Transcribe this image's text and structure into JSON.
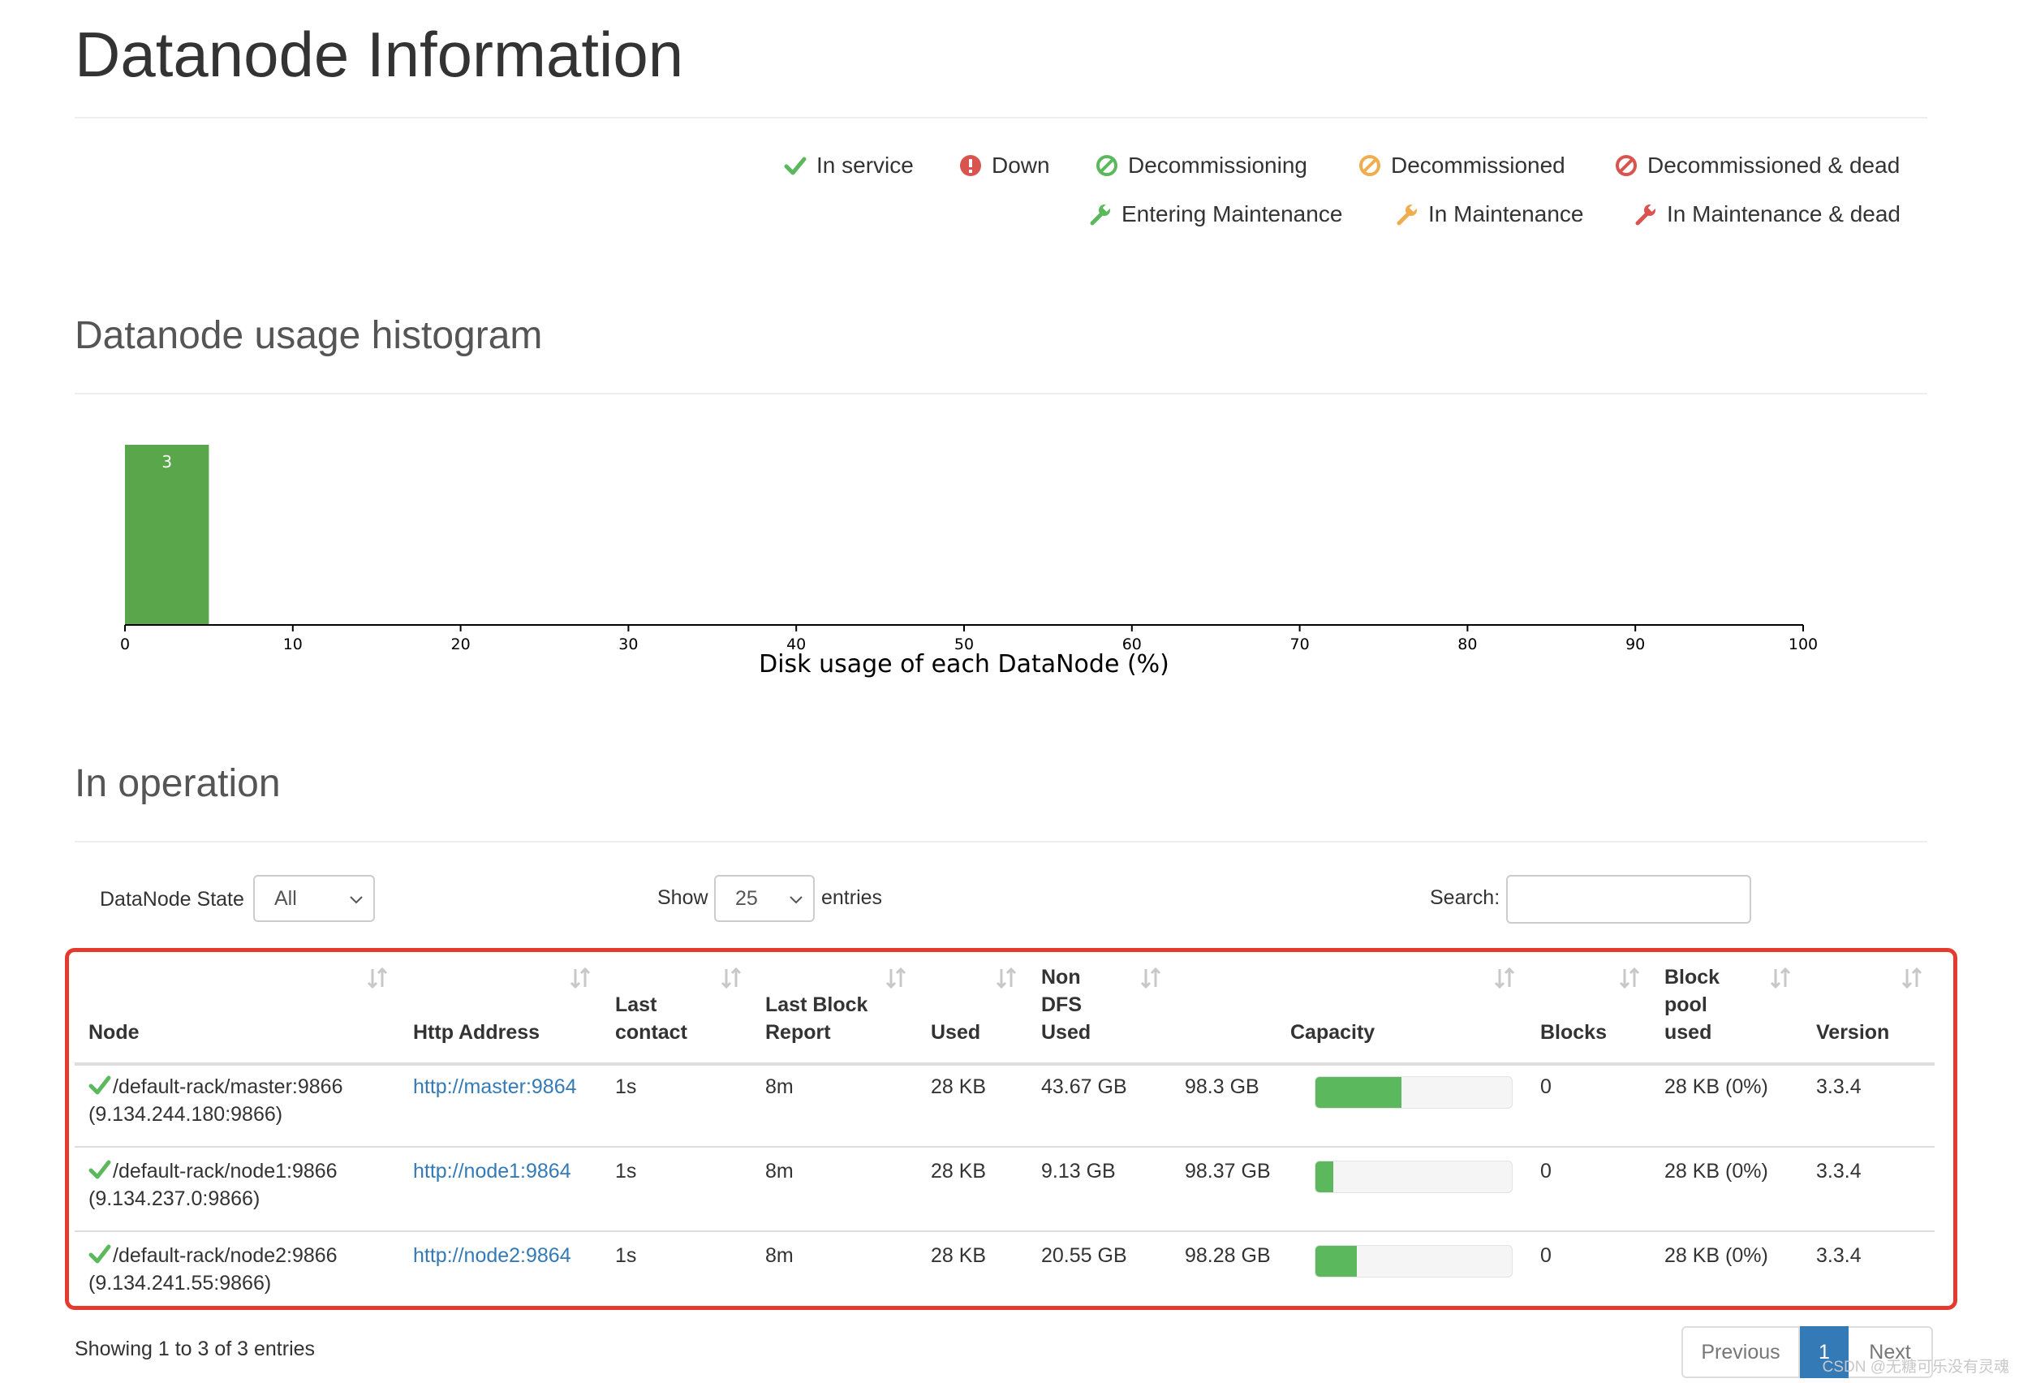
{
  "page": {
    "title": "Datanode Information"
  },
  "legend": [
    {
      "label": "In service",
      "icon": "check-icon",
      "color": "#5cb85c"
    },
    {
      "label": "Down",
      "icon": "exclamation-circle-icon",
      "color": "#d9534f"
    },
    {
      "label": "Decommissioning",
      "icon": "ban-icon",
      "color": "#5cb85c"
    },
    {
      "label": "Decommissioned",
      "icon": "ban-icon",
      "color": "#f0ad4e"
    },
    {
      "label": "Decommissioned & dead",
      "icon": "ban-icon",
      "color": "#d9534f"
    },
    {
      "label": "Entering Maintenance",
      "icon": "wrench-icon",
      "color": "#5cb85c"
    },
    {
      "label": "In Maintenance",
      "icon": "wrench-icon",
      "color": "#f0ad4e"
    },
    {
      "label": "In Maintenance & dead",
      "icon": "wrench-icon",
      "color": "#d9534f"
    }
  ],
  "histogram": {
    "title": "Datanode usage histogram",
    "chart_data": {
      "type": "bar",
      "title": "",
      "xlabel": "Disk usage of each DataNode (%)",
      "ylabel": "",
      "xlim": [
        0,
        100
      ],
      "bin_width": 5,
      "bins": [
        {
          "start": 0,
          "end": 5,
          "count": 3
        }
      ],
      "x_ticks": [
        0,
        10,
        20,
        30,
        40,
        50,
        60,
        70,
        80,
        90,
        100
      ],
      "bar_color": "#5aa64a"
    }
  },
  "operation": {
    "title": "In operation",
    "state_filter": {
      "label": "DataNode State",
      "value": "All"
    },
    "show": {
      "prefix": "Show",
      "value": "25",
      "suffix": "entries"
    },
    "search": {
      "label": "Search:",
      "value": ""
    },
    "columns": [
      {
        "label": "Node"
      },
      {
        "label": "Http Address"
      },
      {
        "label": "Last\ncontact"
      },
      {
        "label": "Last Block\nReport"
      },
      {
        "label": "Used"
      },
      {
        "label": "Non\nDFS\nUsed"
      },
      {
        "label": "Capacity"
      },
      {
        "label": "Blocks"
      },
      {
        "label": "Block\npool\nused"
      },
      {
        "label": "Version"
      }
    ],
    "rows": [
      {
        "node": "/default-rack/master:9866",
        "ip": "(9.134.244.180:9866)",
        "http": "http://master:9864",
        "last_contact": "1s",
        "last_block_report": "8m",
        "used": "28 KB",
        "non_dfs_used": "43.67 GB",
        "capacity": "98.3 GB",
        "capacity_percent": 44,
        "blocks": "0",
        "block_pool_used": "28 KB (0%)",
        "version": "3.3.4"
      },
      {
        "node": "/default-rack/node1:9866",
        "ip": "(9.134.237.0:9866)",
        "http": "http://node1:9864",
        "last_contact": "1s",
        "last_block_report": "8m",
        "used": "28 KB",
        "non_dfs_used": "9.13 GB",
        "capacity": "98.37 GB",
        "capacity_percent": 9,
        "blocks": "0",
        "block_pool_used": "28 KB (0%)",
        "version": "3.3.4"
      },
      {
        "node": "/default-rack/node2:9866",
        "ip": "(9.134.241.55:9866)",
        "http": "http://node2:9864",
        "last_contact": "1s",
        "last_block_report": "8m",
        "used": "28 KB",
        "non_dfs_used": "20.55 GB",
        "capacity": "98.28 GB",
        "capacity_percent": 21,
        "blocks": "0",
        "block_pool_used": "28 KB (0%)",
        "version": "3.3.4"
      }
    ],
    "info": "Showing 1 to 3 of 3 entries",
    "pagination": {
      "previous": "Previous",
      "current": "1",
      "next": "Next"
    }
  },
  "watermark": "CSDN @无糖可乐没有灵魂"
}
